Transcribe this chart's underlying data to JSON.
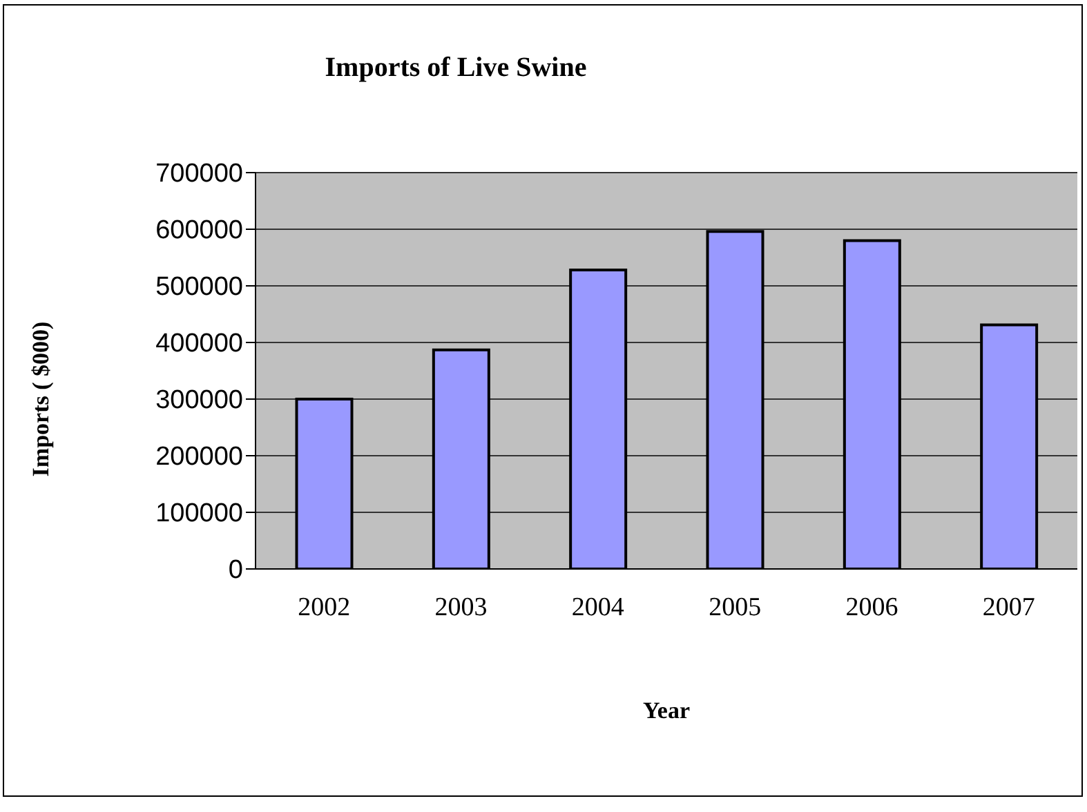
{
  "chart_data": {
    "type": "bar",
    "title": "Imports of Live Swine",
    "xlabel": "Year",
    "ylabel": "Imports ( $000)",
    "categories": [
      "2002",
      "2003",
      "2004",
      "2005",
      "2006",
      "2007"
    ],
    "values": [
      300000,
      387000,
      528000,
      596000,
      580000,
      431000
    ],
    "color": "#9999ff",
    "ylim": [
      0,
      700000
    ],
    "yticks": [
      0,
      100000,
      200000,
      300000,
      400000,
      500000,
      600000,
      700000
    ],
    "grid": "y"
  }
}
